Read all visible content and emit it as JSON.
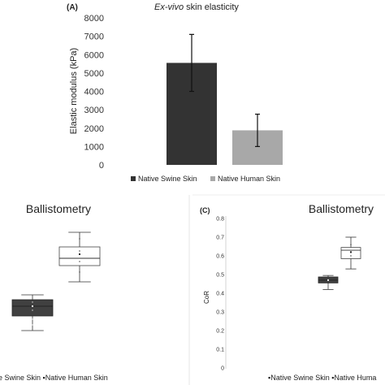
{
  "panels": {
    "A": {
      "label": "(A)",
      "title_italic": "Ex-vivo",
      "title_rest": " skin elasticity"
    },
    "B": {
      "title": "Ballistometry"
    },
    "C": {
      "label": "(C)",
      "title": "Ballistometry"
    }
  },
  "colors": {
    "swine": "#333333",
    "human": "#a8a8a8",
    "box_dark": "#404040",
    "box_light": "#ffffff",
    "divider": "#e4e4e4"
  },
  "chart_data": [
    {
      "type": "bar",
      "categories": [
        "Native Swine Skin",
        "Native Human Skin"
      ],
      "values": [
        5550,
        1880
      ],
      "errors": [
        1550,
        880
      ],
      "ylabel": "Elastic modulus (kPa)",
      "ylim": [
        0,
        8000
      ],
      "yticks": [
        "8000",
        "7000",
        "6000",
        "5000",
        "4000",
        "3000",
        "2000",
        "1000",
        "0"
      ],
      "legend": [
        "Native Swine Skin",
        "Native Human Skin"
      ],
      "legend_position": "bottom",
      "grid": false
    },
    {
      "type": "box",
      "categories": [
        "Native Swine Skin",
        "Native Human Skin"
      ],
      "legend_text": "e Swine Skin ▪Native Human Skin",
      "grid": false
    },
    {
      "type": "box",
      "categories": [
        "Native Swine Skin",
        "Native Human Skin"
      ],
      "ylabel": "CoR",
      "ylim": [
        0,
        0.8
      ],
      "yticks": [
        "0.8",
        "0.7",
        "0.6",
        "0.5",
        "0.4",
        "0.3",
        "0.2",
        "0.1",
        "0"
      ],
      "boxes": [
        {
          "min": 0.42,
          "q1": 0.455,
          "median": 0.47,
          "mean": 0.47,
          "q3": 0.487,
          "max": 0.495
        },
        {
          "min": 0.53,
          "q1": 0.585,
          "median": 0.63,
          "mean": 0.62,
          "q3": 0.645,
          "max": 0.7
        }
      ],
      "legend_text": "▪Native Swine Skin ▪Native Huma",
      "grid": false
    }
  ]
}
